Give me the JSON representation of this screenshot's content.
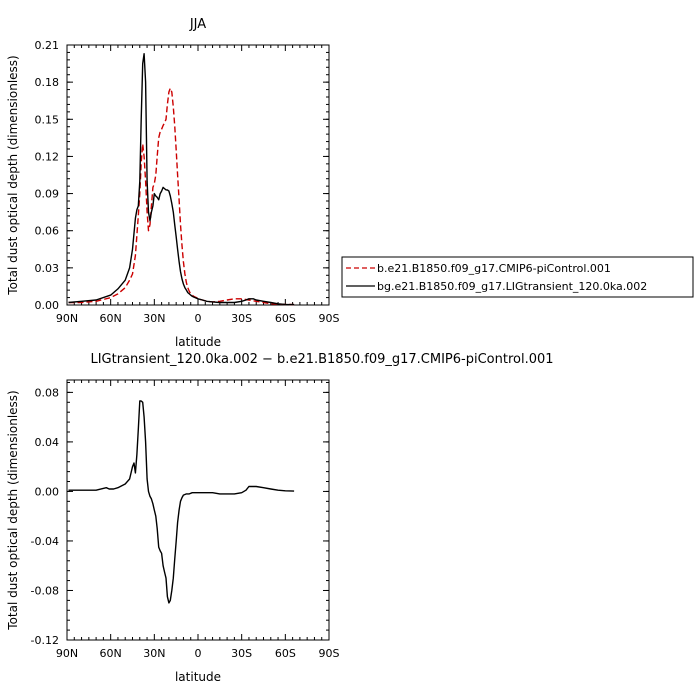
{
  "chart_data": [
    {
      "type": "line",
      "title": "JJA",
      "xlabel": "latitude",
      "ylabel": "Total dust optical depth (dimensionless)",
      "x_ticks": [
        "90N",
        "60N",
        "30N",
        "0",
        "30S",
        "60S",
        "90S"
      ],
      "x_tick_values": [
        90,
        60,
        30,
        0,
        -30,
        -60,
        -90
      ],
      "xlim": [
        90,
        -90
      ],
      "y_ticks": [
        "0.00",
        "0.03",
        "0.06",
        "0.09",
        "0.12",
        "0.15",
        "0.18",
        "0.21"
      ],
      "ylim": [
        0,
        0.21
      ],
      "legend_position": "right",
      "series": [
        {
          "name": "b.e21.B1850.f09_g17.CMIP6-piControl.001",
          "color": "#cc0000",
          "style": "dashed",
          "x": [
            89,
            80,
            70,
            60,
            55,
            50,
            47,
            45,
            43,
            41,
            40,
            39,
            38,
            37,
            36,
            35,
            34,
            33,
            32,
            31,
            30,
            29,
            28,
            27,
            26,
            25,
            24,
            23,
            22,
            21,
            20,
            19,
            18,
            17,
            16,
            15,
            14,
            13,
            12,
            11,
            10,
            9,
            8,
            7,
            6,
            5,
            4,
            3,
            2,
            1,
            0,
            -3,
            -6,
            -10,
            -15,
            -20,
            -25,
            -30,
            -35,
            -40,
            -45,
            -50,
            -60,
            -66
          ],
          "y": [
            0.002,
            0.002,
            0.003,
            0.006,
            0.009,
            0.014,
            0.02,
            0.025,
            0.04,
            0.072,
            0.09,
            0.115,
            0.13,
            0.12,
            0.1,
            0.075,
            0.06,
            0.065,
            0.08,
            0.095,
            0.098,
            0.105,
            0.12,
            0.135,
            0.14,
            0.142,
            0.145,
            0.147,
            0.15,
            0.162,
            0.172,
            0.175,
            0.172,
            0.16,
            0.145,
            0.125,
            0.105,
            0.085,
            0.065,
            0.048,
            0.035,
            0.025,
            0.018,
            0.014,
            0.011,
            0.009,
            0.008,
            0.007,
            0.0065,
            0.006,
            0.005,
            0.004,
            0.003,
            0.0025,
            0.003,
            0.004,
            0.005,
            0.005,
            0.004,
            0.003,
            0.002,
            0.001,
            0.0005,
            0.0003
          ]
        },
        {
          "name": "bg.e21.B1850.f09_g17.LIGtransient_120.0ka.002",
          "color": "#000000",
          "style": "solid",
          "x": [
            89,
            80,
            70,
            60,
            55,
            50,
            47,
            45,
            43,
            42,
            41,
            40,
            39,
            38,
            37,
            36,
            35,
            34,
            33,
            32,
            31,
            30,
            29,
            28,
            27,
            26,
            25,
            24,
            23,
            22,
            21,
            20,
            19,
            18,
            17,
            16,
            15,
            14,
            13,
            12,
            11,
            10,
            9,
            8,
            7,
            6,
            5,
            4,
            3,
            2,
            1,
            0,
            -3,
            -6,
            -10,
            -15,
            -20,
            -25,
            -30,
            -33,
            -35,
            -38,
            -40,
            -45,
            -50,
            -55,
            -60,
            -66
          ],
          "y": [
            0.002,
            0.003,
            0.004,
            0.008,
            0.013,
            0.02,
            0.03,
            0.045,
            0.07,
            0.077,
            0.08,
            0.1,
            0.15,
            0.195,
            0.203,
            0.18,
            0.1,
            0.075,
            0.068,
            0.075,
            0.08,
            0.09,
            0.088,
            0.087,
            0.085,
            0.09,
            0.092,
            0.095,
            0.094,
            0.093,
            0.093,
            0.092,
            0.088,
            0.082,
            0.075,
            0.065,
            0.055,
            0.045,
            0.035,
            0.027,
            0.021,
            0.017,
            0.014,
            0.012,
            0.01,
            0.009,
            0.008,
            0.007,
            0.0065,
            0.006,
            0.0055,
            0.005,
            0.004,
            0.003,
            0.0025,
            0.002,
            0.002,
            0.002,
            0.003,
            0.004,
            0.005,
            0.005,
            0.004,
            0.003,
            0.002,
            0.001,
            0.0005,
            0.0003
          ]
        }
      ]
    },
    {
      "type": "line",
      "title": "LIGtransient_120.0ka.002 − b.e21.B1850.f09_g17.CMIP6-piControl.001",
      "xlabel": "latitude",
      "ylabel": "Total dust optical depth (dimensionless)",
      "x_ticks": [
        "90N",
        "60N",
        "30N",
        "0",
        "30S",
        "60S",
        "90S"
      ],
      "x_tick_values": [
        90,
        60,
        30,
        0,
        -30,
        -60,
        -90
      ],
      "xlim": [
        90,
        -90
      ],
      "y_ticks": [
        "-0.12",
        "-0.08",
        "-0.04",
        "0.00",
        "0.04",
        "0.08"
      ],
      "y_tick_values": [
        -0.12,
        -0.08,
        -0.04,
        0,
        0.04,
        0.08
      ],
      "ylim": [
        -0.12,
        0.09
      ],
      "series": [
        {
          "color": "#000000",
          "style": "solid",
          "x": [
            89,
            70,
            63,
            61,
            58,
            55,
            50,
            47,
            45,
            44,
            43,
            42,
            41,
            40,
            39,
            38,
            37,
            36,
            35,
            34,
            33,
            32,
            31,
            30,
            29,
            28,
            27,
            26,
            25,
            24,
            23,
            22,
            21,
            20,
            19,
            18,
            17,
            16,
            15,
            14,
            13,
            12,
            11,
            10,
            8,
            6,
            4,
            2,
            0,
            -5,
            -10,
            -15,
            -20,
            -25,
            -30,
            -33,
            -35,
            -37,
            -40,
            -45,
            -50,
            -55,
            -60,
            -66
          ],
          "y": [
            0.001,
            0.001,
            0.003,
            0.002,
            0.002,
            0.003,
            0.006,
            0.01,
            0.02,
            0.023,
            0.015,
            0.03,
            0.05,
            0.073,
            0.073,
            0.072,
            0.06,
            0.04,
            0.01,
            0.0,
            -0.004,
            -0.006,
            -0.01,
            -0.015,
            -0.02,
            -0.03,
            -0.045,
            -0.048,
            -0.05,
            -0.06,
            -0.065,
            -0.07,
            -0.085,
            -0.09,
            -0.088,
            -0.08,
            -0.07,
            -0.055,
            -0.04,
            -0.025,
            -0.015,
            -0.008,
            -0.005,
            -0.003,
            -0.002,
            -0.002,
            -0.001,
            -0.001,
            -0.001,
            -0.001,
            -0.001,
            -0.002,
            -0.002,
            -0.002,
            -0.001,
            0.001,
            0.004,
            0.004,
            0.004,
            0.003,
            0.002,
            0.001,
            0.0005,
            0.0003
          ]
        }
      ]
    }
  ]
}
